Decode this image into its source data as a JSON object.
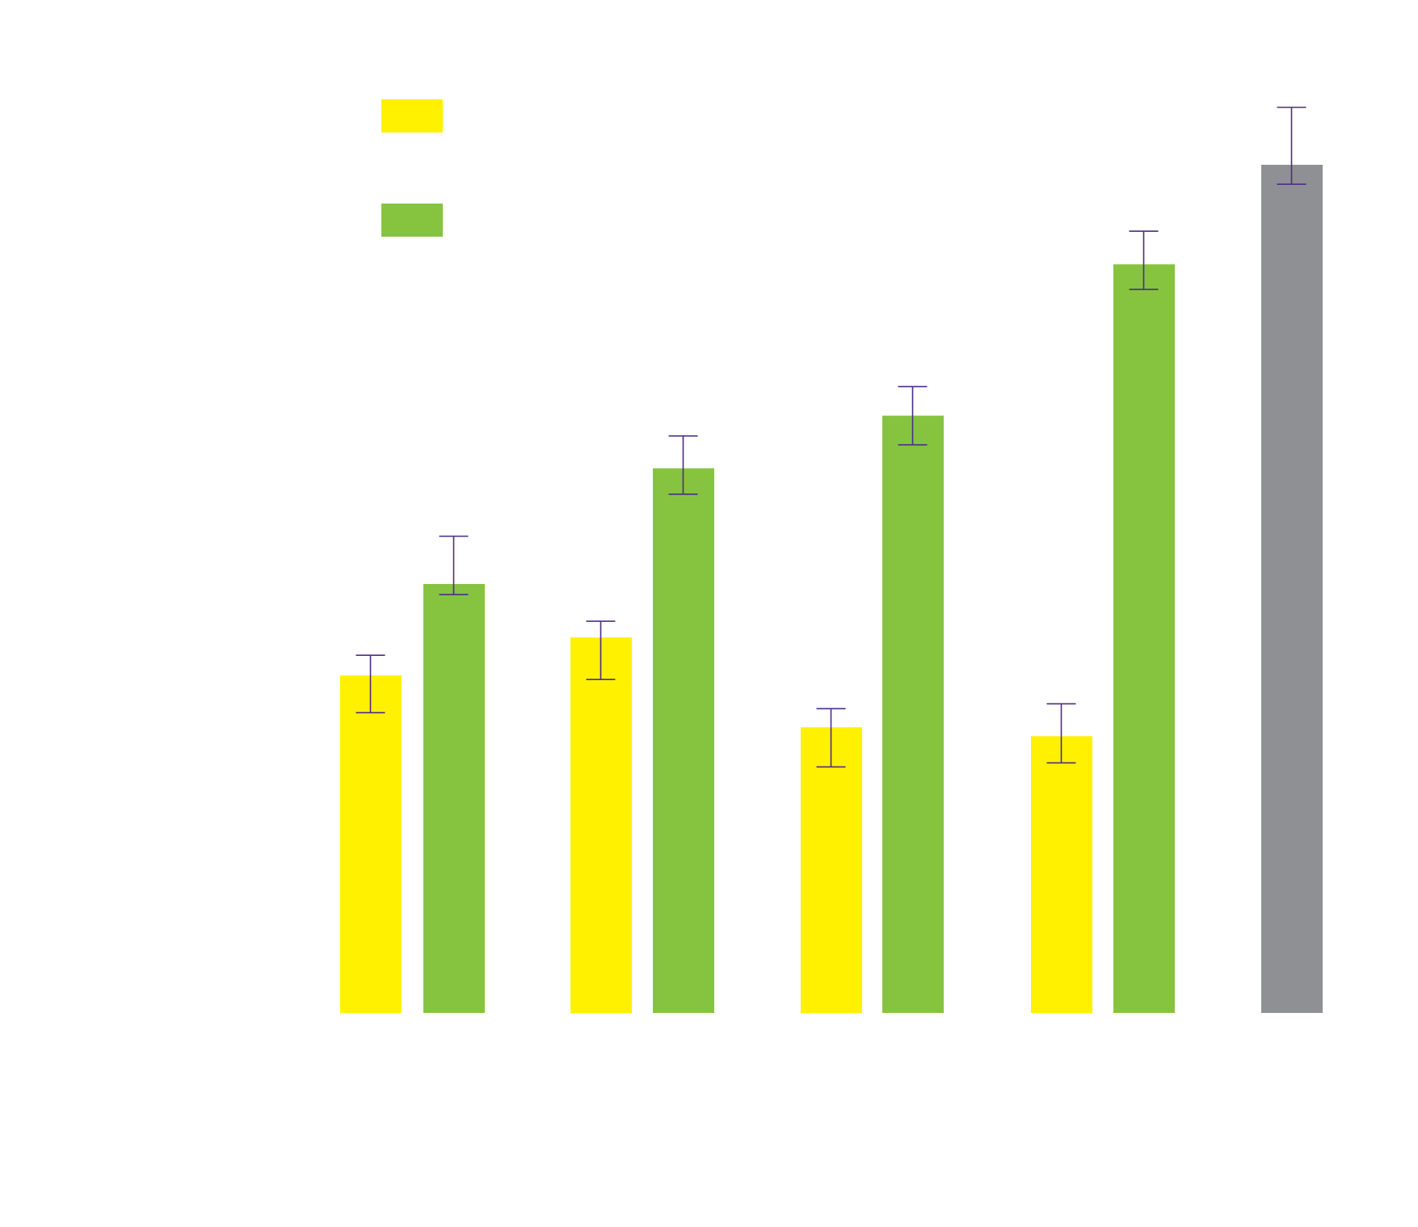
{
  "chart_data": {
    "type": "bar",
    "title": "",
    "xlabel": "",
    "ylabel": "",
    "ylim": [
      0,
      1160
    ],
    "grid": false,
    "legend_position": "top-left",
    "colors": {
      "yellow": "#FFF100",
      "green": "#86C440",
      "gray": "#8F9094",
      "error_bar": "#4B2C87"
    },
    "categories": [
      "",
      "",
      "",
      "",
      ""
    ],
    "series": [
      {
        "color": "#FFF100",
        "values": [
          417,
          464,
          353,
          342,
          null
        ],
        "errors": [
          [
            46,
            25
          ],
          [
            52,
            20
          ],
          [
            49,
            23
          ],
          [
            33,
            40
          ],
          [
            null,
            null
          ]
        ]
      },
      {
        "color": "#86C440",
        "values": [
          530,
          673,
          738,
          925,
          null
        ],
        "errors": [
          [
            13,
            59
          ],
          [
            32,
            40
          ],
          [
            36,
            36
          ],
          [
            31,
            41
          ],
          [
            null,
            null
          ]
        ]
      },
      {
        "color": "#8F9094",
        "values": [
          null,
          null,
          null,
          null,
          1048
        ],
        "errors": [
          [
            null,
            null
          ],
          [
            null,
            null
          ],
          [
            null,
            null
          ],
          [
            null,
            null
          ],
          [
            24,
            71
          ]
        ]
      }
    ]
  }
}
